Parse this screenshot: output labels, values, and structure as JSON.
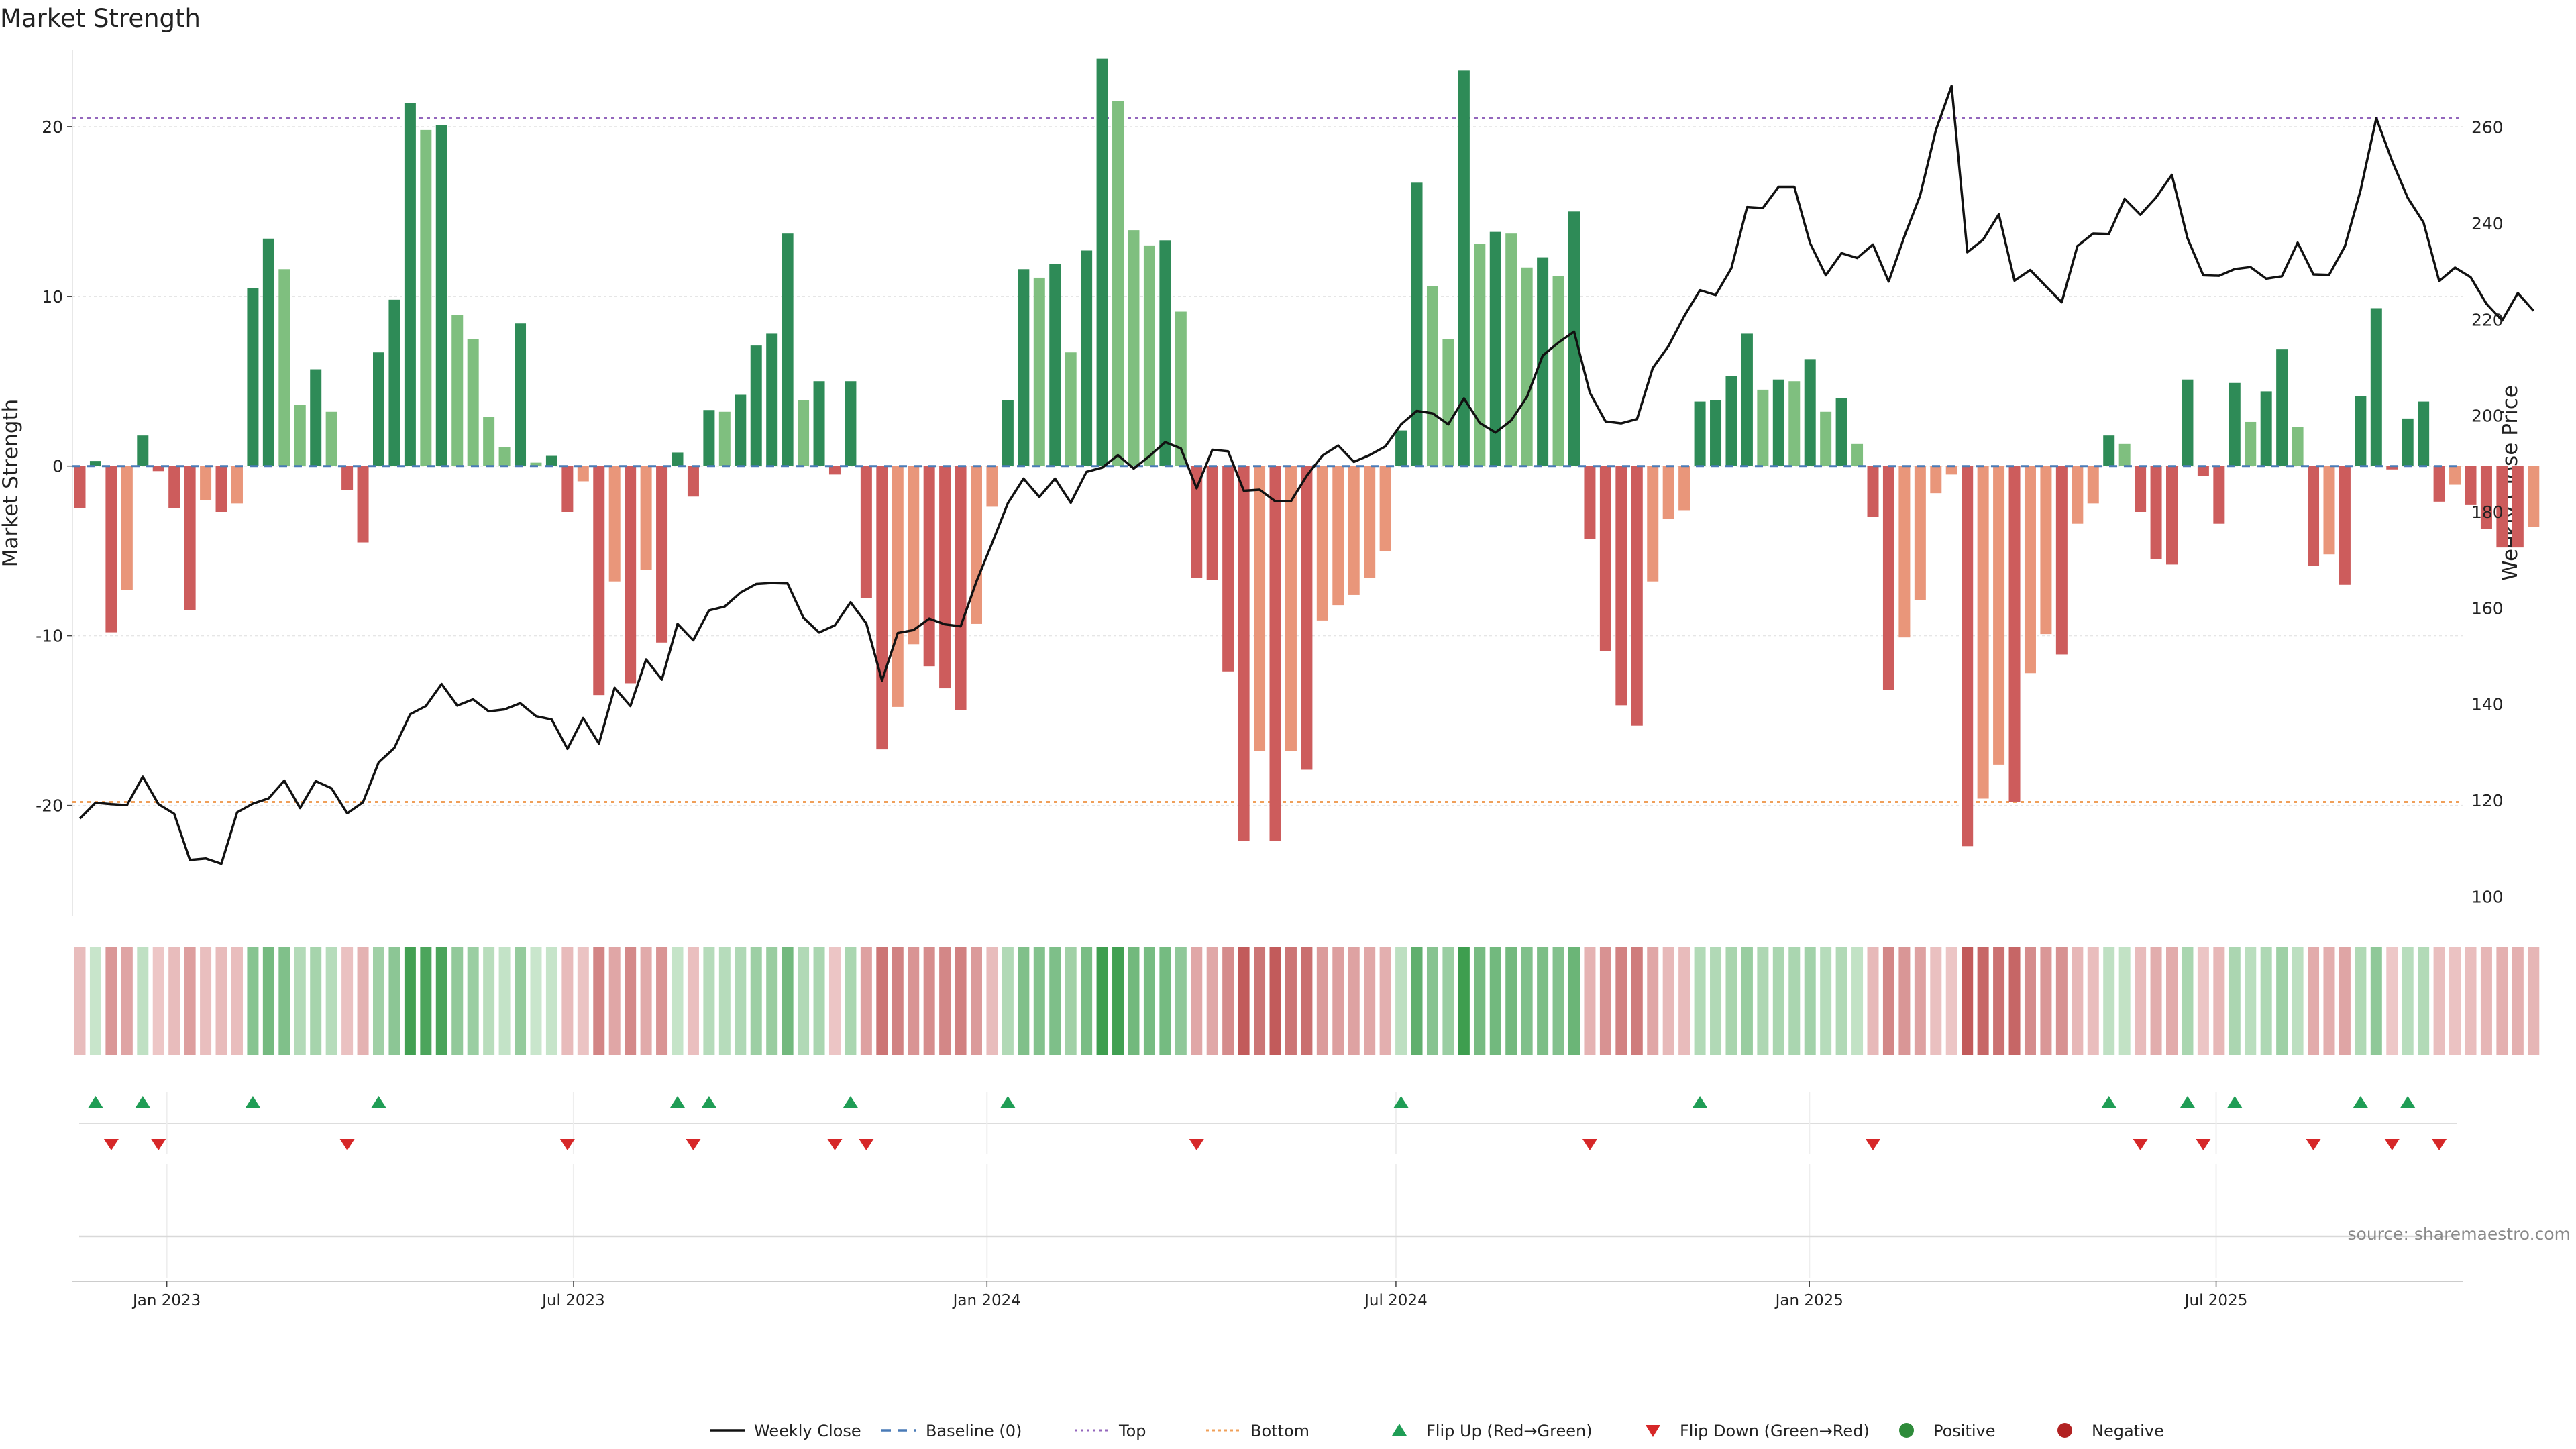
{
  "chart_data": {
    "type": "bar",
    "title": "Market Strength",
    "ylabel": "Market Strength",
    "y2label": "Weekly Close Price",
    "ylim": [
      -26.5,
      24.5
    ],
    "y2lim": [
      96,
      276
    ],
    "yticks": [
      20,
      10,
      0,
      -10,
      -20
    ],
    "y2ticks": [
      260,
      240,
      220,
      200,
      180,
      160,
      140,
      120,
      100
    ],
    "top_line": 20.5,
    "bottom_line": -19.8,
    "x_start": "2022-11-20",
    "x_end": "2025-10-19",
    "xticks": [
      "Jan 2023",
      "Jul 2023",
      "Jan 2024",
      "Jul 2024",
      "Jan 2025",
      "Jul 2025"
    ],
    "xtick_dates": [
      "2023-01-01",
      "2023-07-01",
      "2024-01-01",
      "2024-07-01",
      "2025-01-01",
      "2025-07-01"
    ],
    "first_week": "2022-11-20",
    "strength": [
      -2.5,
      0.3,
      -9.8,
      -7.3,
      1.8,
      -0.3,
      -2.5,
      -8.5,
      -2.0,
      -2.7,
      -2.2,
      10.5,
      13.4,
      11.6,
      3.6,
      5.7,
      3.2,
      -1.4,
      -4.5,
      6.7,
      9.8,
      21.4,
      19.8,
      20.1,
      8.9,
      7.5,
      2.9,
      1.1,
      8.4,
      0.2,
      0.6,
      -2.7,
      -0.9,
      -13.5,
      -6.8,
      -12.8,
      -6.1,
      -10.4,
      0.8,
      -1.8,
      3.3,
      3.2,
      4.2,
      7.1,
      7.8,
      13.7,
      3.9,
      5.0,
      -0.5,
      5.0,
      -7.8,
      -16.7,
      -14.2,
      -10.5,
      -11.8,
      -13.1,
      -14.4,
      -9.3,
      -2.4,
      3.9,
      11.6,
      11.1,
      11.9,
      6.7,
      12.7,
      24.0,
      21.5,
      13.9,
      13.0,
      13.3,
      9.1,
      -6.6,
      -6.7,
      -12.1,
      -22.1,
      -16.8,
      -22.1,
      -16.8,
      -17.9,
      -9.1,
      -8.2,
      -7.6,
      -6.6,
      -5.0,
      2.1,
      16.7,
      10.6,
      7.5,
      23.3,
      13.1,
      13.8,
      13.7,
      11.7,
      12.3,
      11.2,
      15.0,
      -4.3,
      -10.9,
      -14.1,
      -15.3,
      -6.8,
      -3.1,
      -2.6,
      3.8,
      3.9,
      5.3,
      7.8,
      4.5,
      5.1,
      5.0,
      6.3,
      3.2,
      4.0,
      1.3,
      -3.0,
      -13.2,
      -10.1,
      -7.9,
      -1.6,
      -0.5,
      -22.4,
      -19.6,
      -17.6,
      -19.8,
      -12.2,
      -9.9,
      -11.1,
      -3.4,
      -2.2,
      1.8,
      1.3,
      -2.7,
      -5.5,
      -5.8,
      5.1,
      -0.6,
      -3.4,
      4.9,
      2.6,
      4.4,
      6.9,
      2.3,
      -5.9,
      -5.2,
      -7.0,
      4.1,
      9.3,
      -0.2,
      2.8,
      3.8,
      -2.1,
      -1.1,
      -2.3,
      -3.7,
      -4.8,
      -4.8,
      -3.6
    ],
    "close": [
      116.2,
      119.5,
      119.2,
      119.0,
      124.9,
      119.2,
      117.2,
      107.6,
      107.9,
      106.8,
      117.5,
      119.3,
      120.4,
      124.1,
      118.4,
      124.0,
      122.5,
      117.3,
      119.6,
      127.9,
      130.9,
      137.9,
      139.6,
      144.2,
      139.7,
      141.0,
      138.5,
      138.9,
      140.2,
      137.5,
      136.8,
      130.7,
      137.1,
      131.8,
      143.4,
      139.6,
      149.3,
      145.1,
      156.7,
      153.3,
      159.5,
      160.3,
      163.2,
      165.0,
      165.2,
      165.1,
      158.0,
      154.9,
      156.4,
      161.2,
      156.8,
      144.9,
      154.8,
      155.4,
      157.8,
      156.6,
      156.2,
      165.5,
      173.5,
      181.8,
      186.9,
      183.1,
      186.9,
      181.9,
      188.3,
      189.2,
      191.8,
      189.0,
      191.6,
      194.5,
      193.2,
      184.9,
      192.9,
      192.6,
      184.4,
      184.6,
      182.2,
      182.2,
      187.5,
      191.7,
      193.8,
      190.4,
      191.8,
      193.6,
      198.2,
      201.0,
      200.5,
      198.2,
      203.6,
      198.5,
      196.5,
      199.0,
      203.9,
      212.5,
      215.2,
      217.5,
      204.8,
      198.8,
      198.4,
      199.3,
      209.9,
      214.5,
      220.7,
      226.1,
      225.1,
      230.7,
      243.4,
      243.2,
      247.6,
      247.6,
      235.9,
      229.2,
      233.8,
      232.8,
      235.6,
      227.9,
      237.3,
      245.8,
      259.4,
      268.6,
      234.0,
      236.6,
      241.9,
      228.1,
      230.3,
      226.9,
      223.6,
      235.3,
      237.9,
      237.8,
      245.1,
      241.8,
      245.4,
      250.1,
      236.9,
      229.2,
      229.1,
      230.5,
      230.9,
      228.5,
      229.0,
      236.0,
      229.4,
      229.3,
      235.2,
      246.9,
      261.9,
      253.0,
      245.3,
      240.2,
      228.0,
      230.8,
      228.8,
      223.3,
      219.8,
      225.5,
      221.8
    ],
    "flip_up_weeks": [
      1,
      4,
      11,
      19,
      38,
      40,
      49,
      59,
      84,
      103,
      129,
      134,
      137,
      145,
      148
    ],
    "flip_down_weeks": [
      2,
      5,
      17,
      31,
      39,
      48,
      50,
      71,
      96,
      114,
      131,
      135,
      142,
      147,
      150
    ]
  },
  "source_text": "source: sharemaestro.com",
  "legend": [
    {
      "label": "Weekly Close",
      "kind": "line",
      "color": "#111111"
    },
    {
      "label": "Baseline (0)",
      "kind": "dash",
      "color": "#4a7bb7"
    },
    {
      "label": "Top",
      "kind": "dot",
      "color": "#9467bd"
    },
    {
      "label": "Bottom",
      "kind": "dot",
      "color": "#f0a05a"
    },
    {
      "label": "Flip Up (Red→Green)",
      "kind": "triangle-up",
      "color": "#1f9d55"
    },
    {
      "label": "Flip Down (Green→Red)",
      "kind": "triangle-down",
      "color": "#d62728"
    },
    {
      "label": "Positive",
      "kind": "circle",
      "color": "#2e8b3a"
    },
    {
      "label": "Negative",
      "kind": "circle",
      "color": "#b22222"
    }
  ],
  "colors": {
    "pos_strong": "#2e8b57",
    "pos_light": "#7fbf7f",
    "neg_strong": "#cd5c5c",
    "neg_light": "#e9967a",
    "close_line": "#111111",
    "top_line": "#9467bd",
    "bottom_line": "#f0a05a",
    "baseline": "#4a7bb7",
    "grid": "#e6e6e6"
  }
}
